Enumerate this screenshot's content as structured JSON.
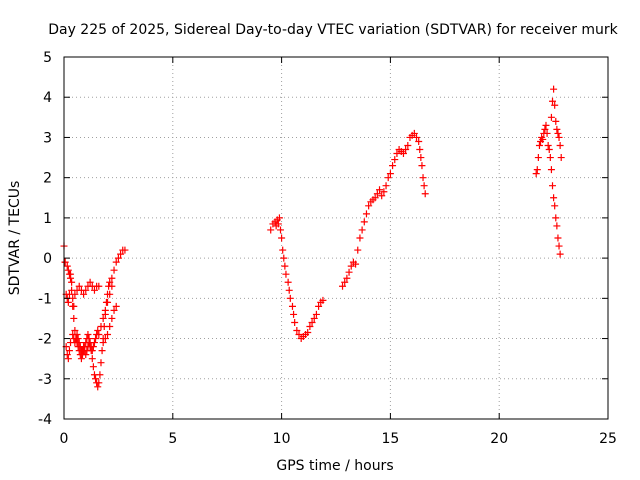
{
  "chart_data": {
    "type": "scatter",
    "title": "Day 225 of 2025, Sidereal Day-to-day VTEC variation (SDTVAR) for receiver murk",
    "xlabel": "GPS time / hours",
    "ylabel": "SDTVAR / TECUs",
    "xlim": [
      0,
      25
    ],
    "ylim": [
      -4,
      5
    ],
    "xticks": [
      0,
      5,
      10,
      15,
      20,
      25
    ],
    "yticks": [
      -4,
      -3,
      -2,
      -1,
      0,
      1,
      2,
      3,
      4,
      5
    ],
    "grid": true,
    "marker": "+",
    "colors": {
      "series": "#ff0000",
      "grid": "#a0a0a0",
      "axis": "#000000"
    },
    "series": [
      {
        "name": "SDTVAR",
        "segments": [
          [
            [
              0.0,
              0.3
            ],
            [
              0.05,
              -0.1
            ],
            [
              0.1,
              -0.9
            ],
            [
              0.15,
              -1.0
            ],
            [
              0.2,
              -1.1
            ],
            [
              0.25,
              -0.9
            ],
            [
              0.3,
              -0.4
            ],
            [
              0.35,
              -0.6
            ],
            [
              0.4,
              -1.0
            ],
            [
              0.45,
              -1.2
            ]
          ],
          [
            [
              0.05,
              -0.1
            ],
            [
              0.1,
              -2.2
            ],
            [
              0.15,
              -2.4
            ],
            [
              0.2,
              -2.5
            ],
            [
              0.25,
              -2.3
            ],
            [
              0.3,
              -2.1
            ]
          ],
          [
            [
              0.15,
              -0.2
            ],
            [
              0.2,
              -0.3
            ],
            [
              0.25,
              -0.4
            ],
            [
              0.3,
              -0.5
            ],
            [
              0.35,
              -0.8
            ],
            [
              0.4,
              -1.2
            ],
            [
              0.45,
              -1.5
            ],
            [
              0.5,
              -1.8
            ],
            [
              0.55,
              -2.0
            ],
            [
              0.6,
              -2.1
            ],
            [
              0.65,
              -2.2
            ],
            [
              0.7,
              -2.3
            ],
            [
              0.75,
              -2.4
            ],
            [
              0.8,
              -2.5
            ],
            [
              0.85,
              -2.4
            ],
            [
              0.9,
              -2.3
            ],
            [
              0.95,
              -2.2
            ],
            [
              1.0,
              -2.1
            ],
            [
              1.05,
              -2.0
            ],
            [
              1.1,
              -1.9
            ],
            [
              1.15,
              -2.0
            ],
            [
              1.2,
              -2.1
            ],
            [
              1.25,
              -2.2
            ],
            [
              1.3,
              -2.3
            ],
            [
              1.35,
              -2.2
            ],
            [
              1.4,
              -2.1
            ],
            [
              1.45,
              -2.0
            ],
            [
              1.5,
              -1.9
            ],
            [
              1.55,
              -1.8
            ]
          ],
          [
            [
              0.4,
              -1.9
            ],
            [
              0.45,
              -2.0
            ],
            [
              0.5,
              -2.1
            ],
            [
              0.55,
              -2.0
            ],
            [
              0.6,
              -1.9
            ],
            [
              0.65,
              -2.0
            ],
            [
              0.7,
              -2.1
            ],
            [
              0.75,
              -2.2
            ],
            [
              0.8,
              -2.3
            ],
            [
              0.85,
              -2.3
            ],
            [
              0.9,
              -2.2
            ],
            [
              0.95,
              -2.3
            ],
            [
              1.0,
              -2.4
            ],
            [
              1.05,
              -2.3
            ],
            [
              1.1,
              -2.2
            ],
            [
              1.15,
              -2.1
            ],
            [
              1.2,
              -2.2
            ],
            [
              1.25,
              -2.3
            ],
            [
              1.3,
              -2.5
            ],
            [
              1.35,
              -2.7
            ],
            [
              1.4,
              -2.9
            ],
            [
              1.45,
              -3.0
            ],
            [
              1.5,
              -3.1
            ],
            [
              1.55,
              -3.2
            ],
            [
              1.6,
              -3.1
            ],
            [
              1.65,
              -2.9
            ],
            [
              1.7,
              -2.6
            ],
            [
              1.75,
              -2.3
            ],
            [
              1.8,
              -2.0
            ],
            [
              1.85,
              -1.7
            ],
            [
              1.9,
              -1.4
            ],
            [
              1.95,
              -1.1
            ],
            [
              2.0,
              -0.9
            ],
            [
              2.05,
              -0.7
            ],
            [
              2.1,
              -0.6
            ],
            [
              2.2,
              -0.5
            ],
            [
              2.3,
              -0.3
            ],
            [
              2.4,
              -0.1
            ],
            [
              2.5,
              0.0
            ],
            [
              2.6,
              0.1
            ],
            [
              2.7,
              0.2
            ],
            [
              2.8,
              0.2
            ]
          ],
          [
            [
              0.5,
              -0.9
            ],
            [
              0.6,
              -0.8
            ],
            [
              0.7,
              -0.7
            ],
            [
              0.8,
              -0.8
            ],
            [
              0.9,
              -0.9
            ],
            [
              1.0,
              -0.8
            ],
            [
              1.1,
              -0.7
            ],
            [
              1.2,
              -0.6
            ],
            [
              1.3,
              -0.7
            ],
            [
              1.4,
              -0.8
            ],
            [
              1.5,
              -0.7
            ],
            [
              1.6,
              -0.7
            ]
          ],
          [
            [
              1.6,
              -1.9
            ],
            [
              1.7,
              -1.7
            ],
            [
              1.8,
              -1.5
            ],
            [
              1.9,
              -1.3
            ],
            [
              2.0,
              -1.1
            ],
            [
              2.1,
              -0.9
            ],
            [
              2.2,
              -0.7
            ]
          ],
          [
            [
              1.8,
              -2.1
            ],
            [
              1.9,
              -2.0
            ],
            [
              2.0,
              -1.9
            ],
            [
              2.1,
              -1.7
            ],
            [
              2.2,
              -1.5
            ],
            [
              2.3,
              -1.3
            ],
            [
              2.4,
              -1.2
            ]
          ],
          [
            [
              9.5,
              0.7
            ],
            [
              9.6,
              0.85
            ],
            [
              9.7,
              0.9
            ],
            [
              9.75,
              0.8
            ],
            [
              9.8,
              0.95
            ],
            [
              9.85,
              0.85
            ],
            [
              9.9,
              1.0
            ],
            [
              9.95,
              0.7
            ],
            [
              10.0,
              0.5
            ],
            [
              10.05,
              0.2
            ],
            [
              10.1,
              0.0
            ],
            [
              10.15,
              -0.2
            ],
            [
              10.2,
              -0.4
            ],
            [
              10.3,
              -0.6
            ],
            [
              10.35,
              -0.8
            ],
            [
              10.4,
              -1.0
            ],
            [
              10.5,
              -1.2
            ],
            [
              10.55,
              -1.4
            ],
            [
              10.6,
              -1.6
            ],
            [
              10.7,
              -1.8
            ],
            [
              10.8,
              -1.9
            ],
            [
              10.9,
              -2.0
            ],
            [
              11.0,
              -1.95
            ],
            [
              11.1,
              -1.9
            ],
            [
              11.2,
              -1.85
            ],
            [
              11.3,
              -1.7
            ],
            [
              11.4,
              -1.6
            ],
            [
              11.5,
              -1.5
            ],
            [
              11.6,
              -1.4
            ],
            [
              11.7,
              -1.2
            ],
            [
              11.8,
              -1.1
            ],
            [
              11.9,
              -1.05
            ]
          ],
          [
            [
              12.8,
              -0.7
            ],
            [
              12.9,
              -0.6
            ],
            [
              13.0,
              -0.5
            ],
            [
              13.1,
              -0.35
            ],
            [
              13.2,
              -0.2
            ],
            [
              13.3,
              -0.1
            ],
            [
              13.4,
              -0.15
            ],
            [
              13.5,
              0.2
            ],
            [
              13.6,
              0.5
            ],
            [
              13.7,
              0.7
            ],
            [
              13.8,
              0.9
            ],
            [
              13.9,
              1.1
            ],
            [
              14.0,
              1.3
            ],
            [
              14.1,
              1.4
            ],
            [
              14.2,
              1.45
            ],
            [
              14.3,
              1.5
            ],
            [
              14.4,
              1.6
            ],
            [
              14.5,
              1.7
            ],
            [
              14.6,
              1.55
            ],
            [
              14.7,
              1.65
            ],
            [
              14.8,
              1.8
            ],
            [
              14.9,
              2.0
            ],
            [
              15.0,
              2.1
            ],
            [
              15.1,
              2.3
            ],
            [
              15.2,
              2.45
            ],
            [
              15.3,
              2.6
            ],
            [
              15.4,
              2.7
            ],
            [
              15.5,
              2.65
            ],
            [
              15.6,
              2.6
            ],
            [
              15.7,
              2.7
            ],
            [
              15.8,
              2.8
            ],
            [
              15.9,
              3.0
            ],
            [
              16.0,
              3.05
            ],
            [
              16.1,
              3.1
            ],
            [
              16.2,
              3.0
            ],
            [
              16.3,
              2.9
            ],
            [
              16.35,
              2.7
            ],
            [
              16.4,
              2.5
            ],
            [
              16.45,
              2.3
            ],
            [
              16.5,
              2.0
            ],
            [
              16.55,
              1.8
            ],
            [
              16.6,
              1.6
            ]
          ],
          [
            [
              21.7,
              2.1
            ],
            [
              21.75,
              2.2
            ],
            [
              21.8,
              2.5
            ],
            [
              21.85,
              2.8
            ],
            [
              21.9,
              2.9
            ],
            [
              21.95,
              3.0
            ],
            [
              22.0,
              2.95
            ],
            [
              22.05,
              3.1
            ],
            [
              22.1,
              3.2
            ],
            [
              22.15,
              3.3
            ],
            [
              22.2,
              3.1
            ],
            [
              22.25,
              2.8
            ],
            [
              22.3,
              2.7
            ],
            [
              22.35,
              2.5
            ],
            [
              22.4,
              2.2
            ],
            [
              22.45,
              1.8
            ],
            [
              22.5,
              1.5
            ],
            [
              22.55,
              1.3
            ],
            [
              22.6,
              1.0
            ],
            [
              22.65,
              0.8
            ],
            [
              22.7,
              0.5
            ],
            [
              22.75,
              0.3
            ],
            [
              22.8,
              0.1
            ]
          ],
          [
            [
              22.4,
              3.5
            ],
            [
              22.45,
              3.9
            ],
            [
              22.5,
              4.2
            ],
            [
              22.55,
              3.8
            ],
            [
              22.6,
              3.4
            ],
            [
              22.65,
              3.2
            ],
            [
              22.7,
              3.1
            ],
            [
              22.75,
              3.0
            ],
            [
              22.8,
              2.8
            ],
            [
              22.85,
              2.5
            ]
          ]
        ]
      }
    ]
  }
}
